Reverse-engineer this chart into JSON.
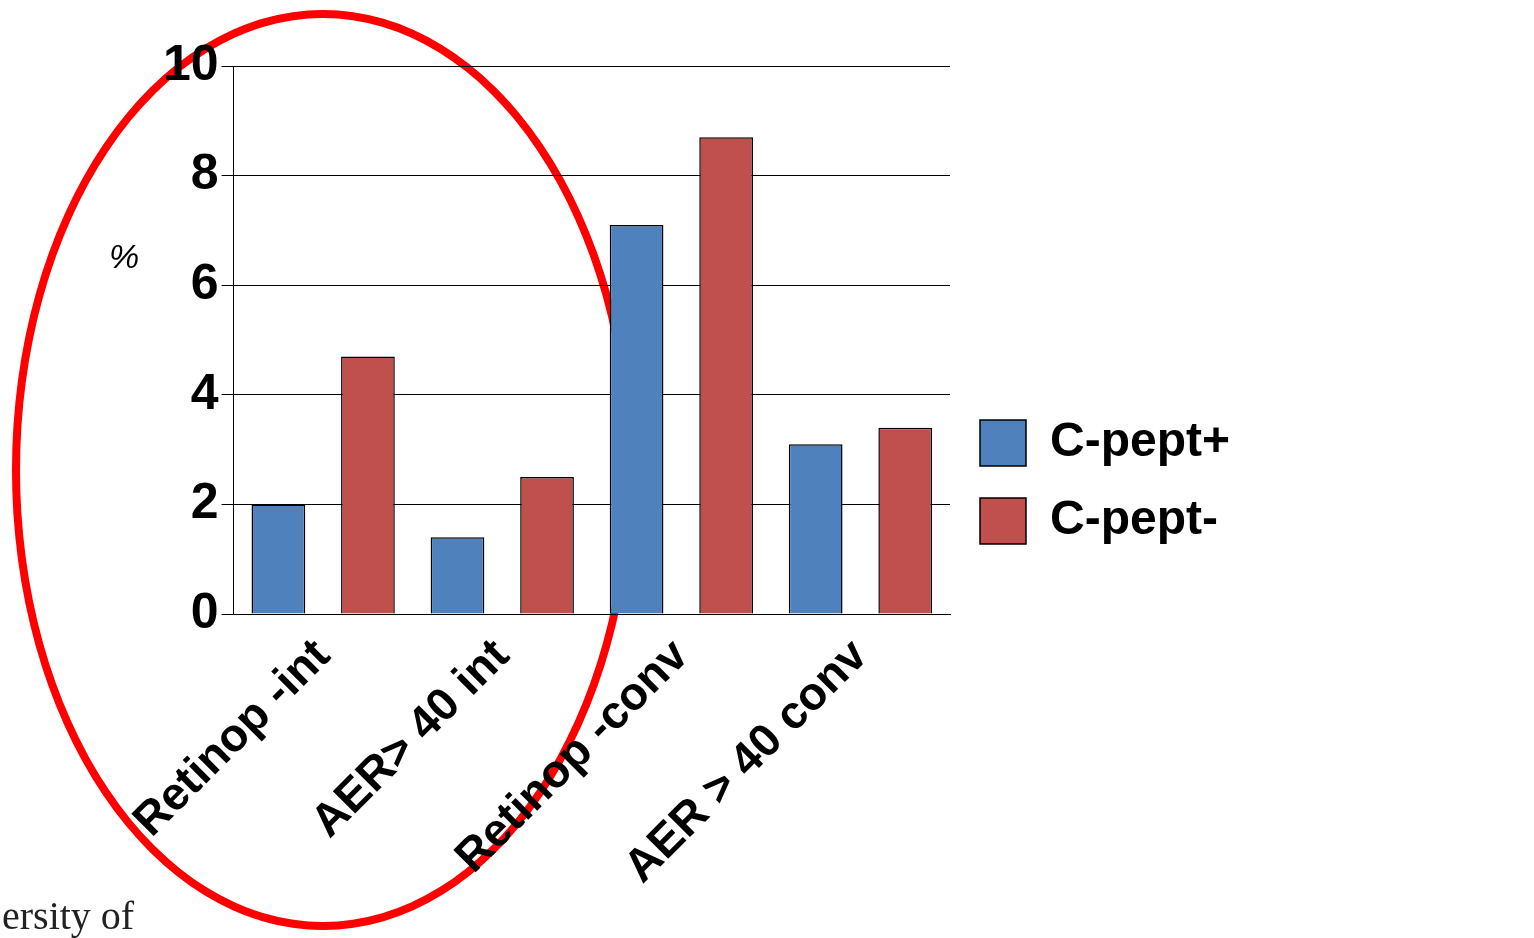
{
  "chart_data": {
    "type": "bar",
    "ylabel": "%",
    "categories": [
      "Retinop -int",
      "AER> 40 int",
      "Retinop -conv",
      "AER > 40 conv"
    ],
    "series": [
      {
        "name": "C-pept+",
        "color": "#4f81bd",
        "values": [
          2.0,
          1.4,
          7.1,
          3.1
        ]
      },
      {
        "name": "C-pept-",
        "color": "#c0504d",
        "values": [
          4.7,
          2.5,
          8.7,
          3.4
        ]
      }
    ],
    "ylim": [
      0,
      10
    ],
    "yticks": [
      0,
      2,
      4,
      6,
      8,
      10
    ],
    "grid": "y",
    "legend": "right",
    "annotations": [
      "ersity of"
    ]
  }
}
